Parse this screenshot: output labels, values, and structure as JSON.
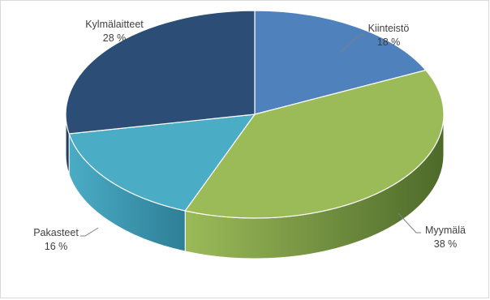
{
  "chart_data": {
    "type": "pie",
    "style": "3d",
    "title": "",
    "categories": [
      "Kiinteistö",
      "Myymälä",
      "Pakasteet",
      "Kylmälaitteet"
    ],
    "values": [
      18,
      38,
      16,
      28
    ],
    "value_labels": [
      "18 %",
      "38 %",
      "16 %",
      "28 %"
    ],
    "colors": [
      "#4f81bd",
      "#9bbb59",
      "#4bacc6",
      "#2c4d75"
    ],
    "side_colors": [
      "#2f5486",
      "#4e6a2a",
      "#2d7f96",
      "#1a2f4a"
    ],
    "start_angle_deg": 0,
    "direction": "clockwise",
    "legend": "none",
    "data_labels": "outside-with-leader-lines"
  }
}
